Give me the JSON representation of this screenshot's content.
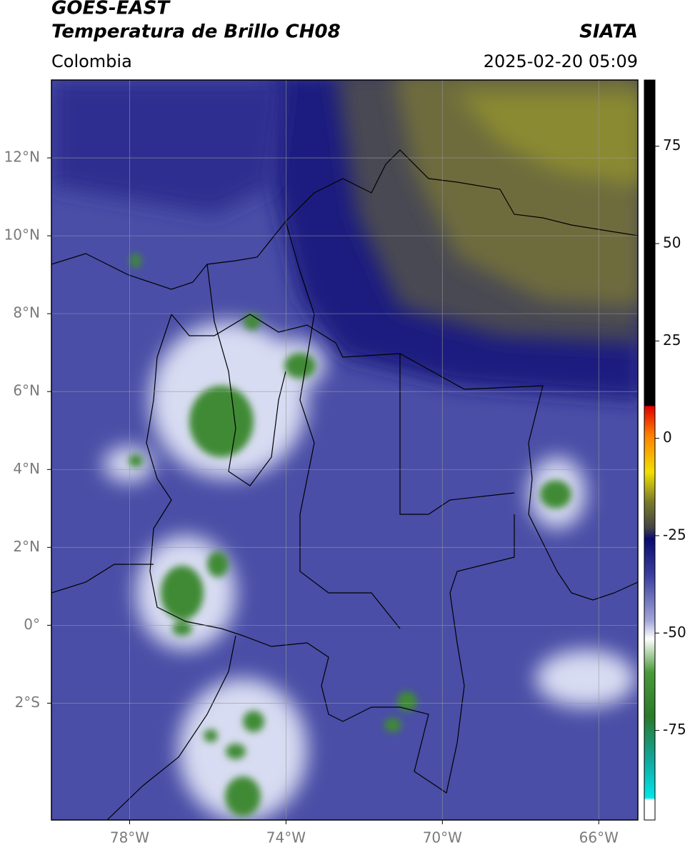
{
  "header": {
    "title": "GOES-EAST",
    "subtitle": "Temperatura de Brillo CH08",
    "region": "Colombia",
    "source": "SIATA",
    "datetime": "2025-02-20 05:09"
  },
  "map": {
    "xlim": [
      -80,
      -65
    ],
    "ylim": [
      -5,
      14
    ],
    "xticks": [
      {
        "value": -78,
        "label": "78°W"
      },
      {
        "value": -74,
        "label": "74°W"
      },
      {
        "value": -70,
        "label": "70°W"
      },
      {
        "value": -66,
        "label": "66°W"
      }
    ],
    "yticks": [
      {
        "value": 12,
        "label": "12°N"
      },
      {
        "value": 10,
        "label": "10°N"
      },
      {
        "value": 8,
        "label": "8°N"
      },
      {
        "value": 6,
        "label": "6°N"
      },
      {
        "value": 4,
        "label": "4°N"
      },
      {
        "value": 2,
        "label": "2°N"
      },
      {
        "value": 0,
        "label": "0°"
      },
      {
        "value": -2,
        "label": "2°S"
      }
    ],
    "grid": true
  },
  "colorbar": {
    "lim": [
      -98,
      92
    ],
    "ticks": [
      75,
      50,
      25,
      0,
      -25,
      -50,
      -75
    ]
  }
}
